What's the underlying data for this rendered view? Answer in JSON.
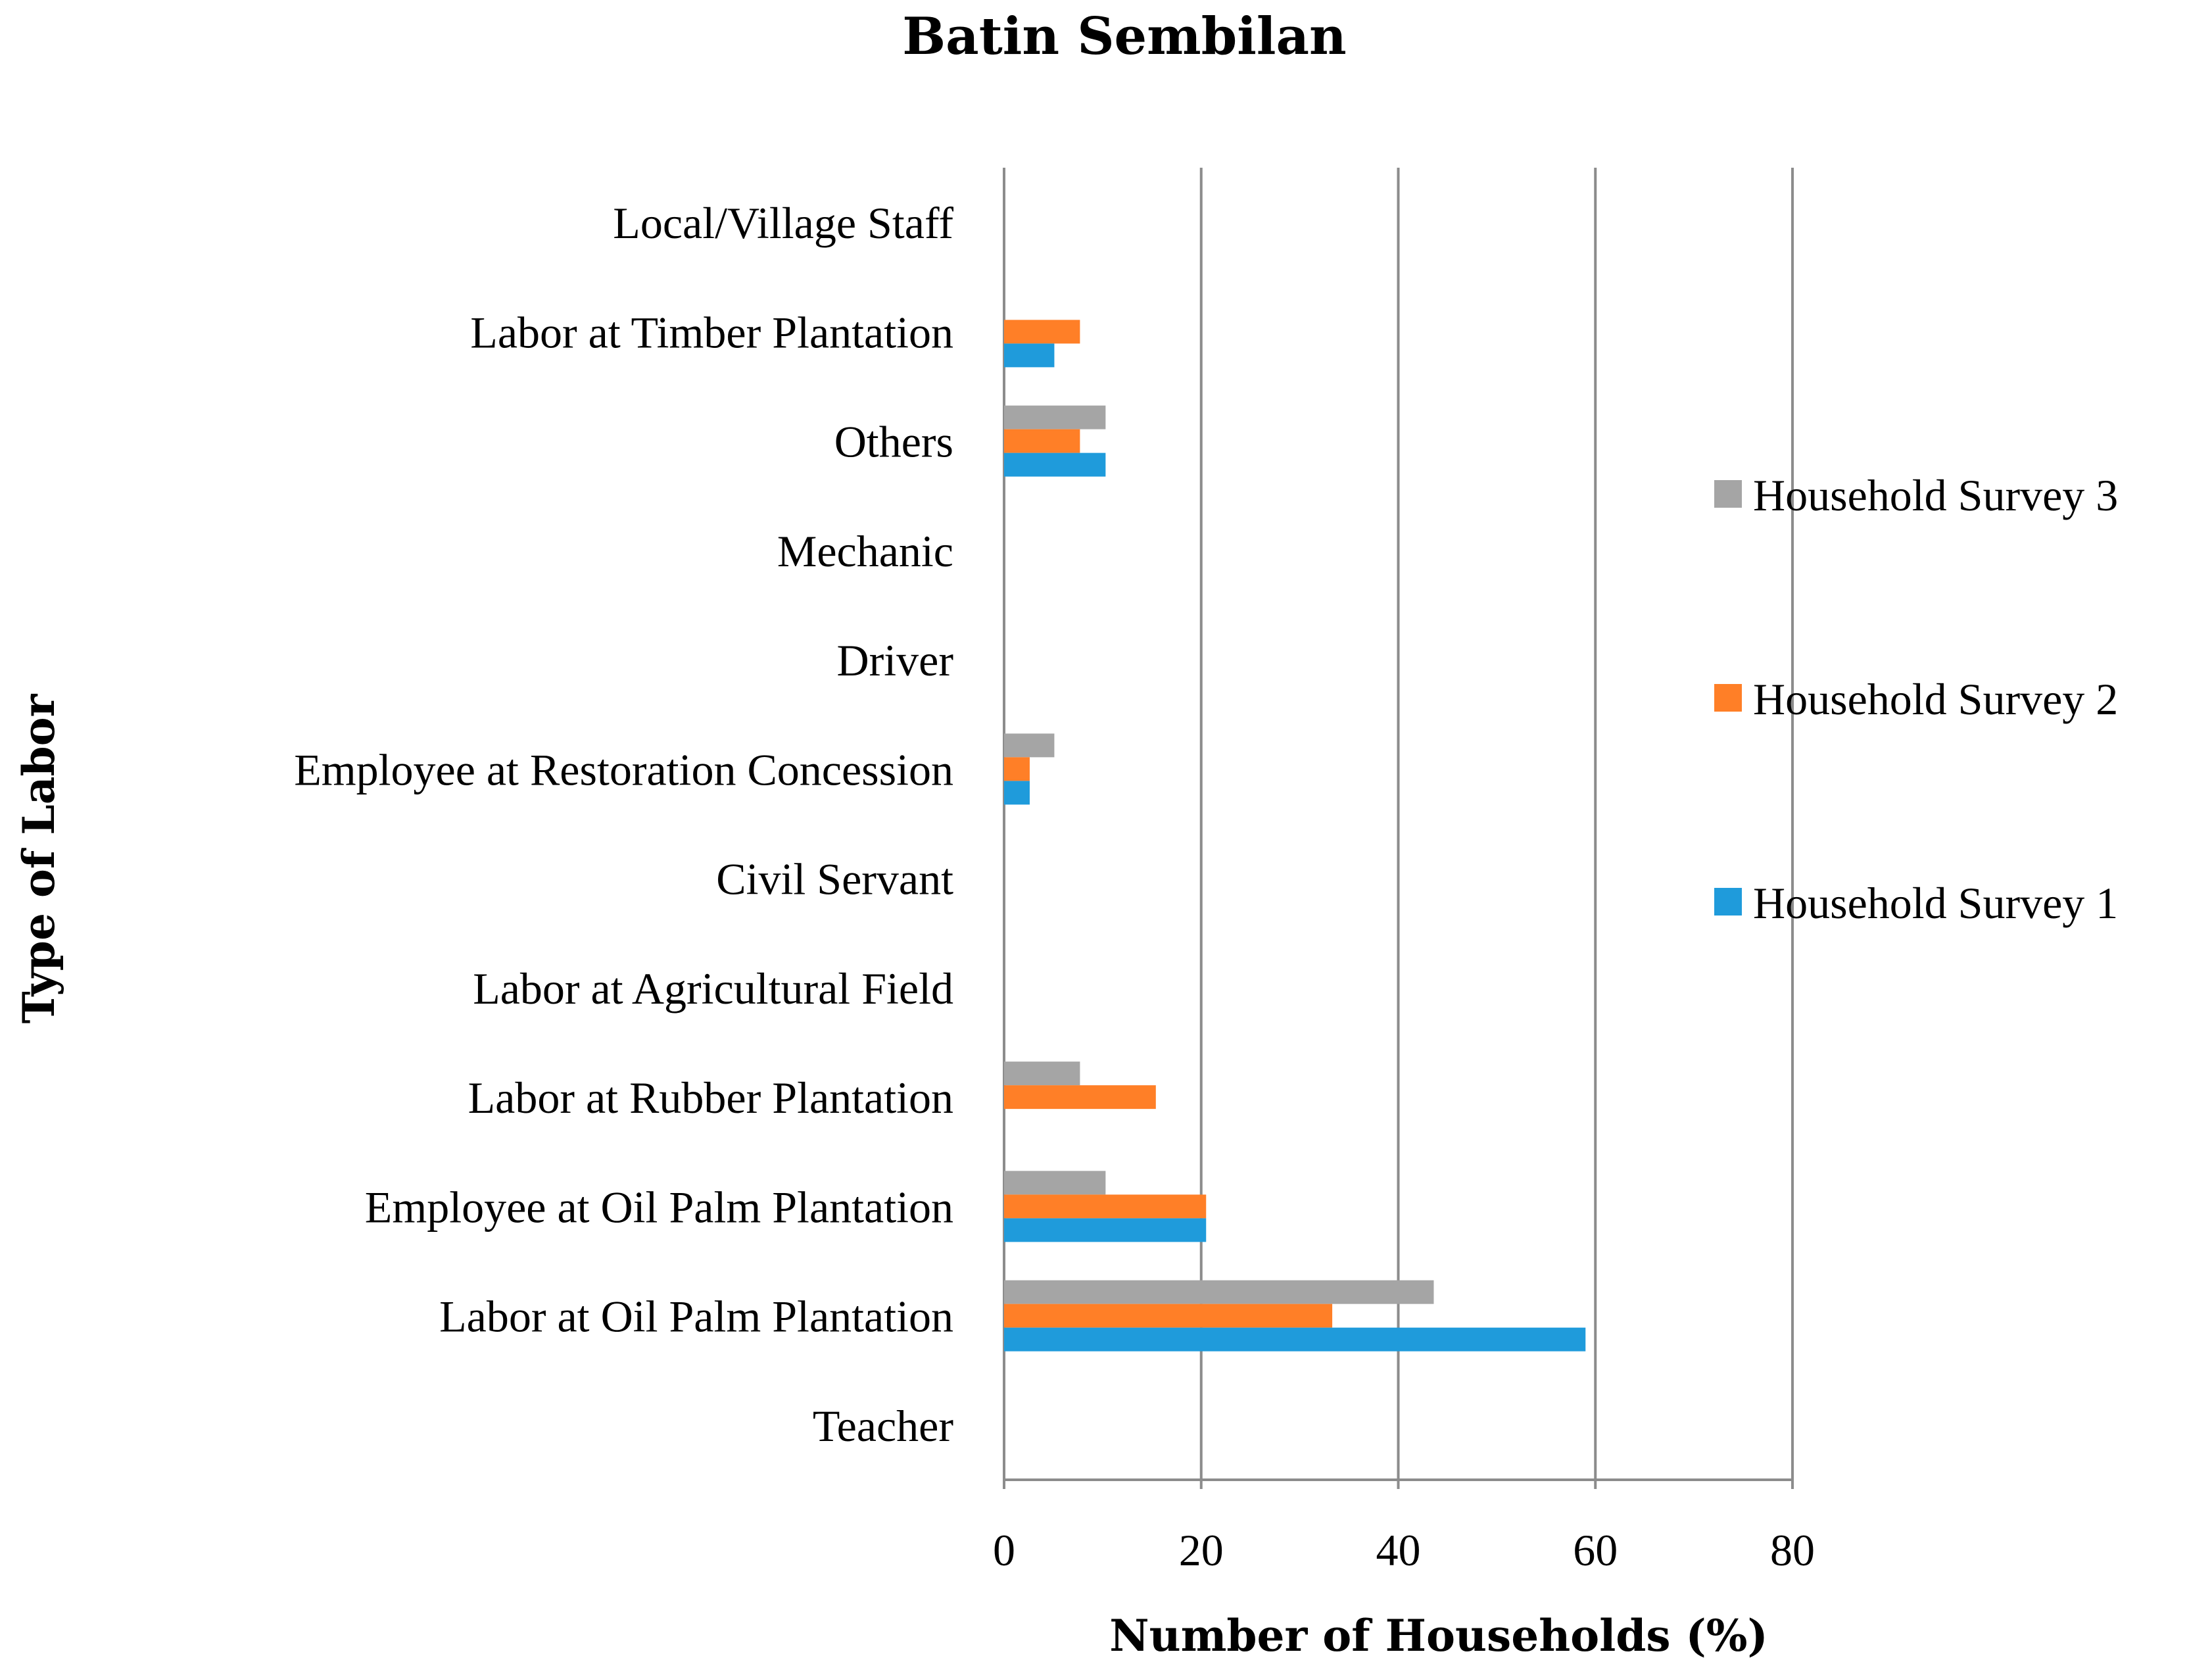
{
  "chart_data": {
    "type": "bar",
    "orientation": "horizontal",
    "title": "Batin Sembilan",
    "xlabel": "Number of Households (%)",
    "ylabel": "Type of Labor",
    "xlim": [
      0,
      80
    ],
    "x_ticks": [
      "0",
      "20",
      "40",
      "60",
      "80"
    ],
    "grid": "vertical",
    "legend_position": "right",
    "categories": [
      "Local/Village Staff",
      "Labor at Timber Plantation",
      "Others",
      "Mechanic",
      "Driver",
      "Employee at Restoration Concession",
      "Civil Servant",
      "Labor at Agricultural Field",
      "Labor at Rubber Plantation",
      "Employee at Oil Palm Plantation",
      "Labor at Oil Palm Plantation",
      "Teacher"
    ],
    "series": [
      {
        "name": "Household Survey 3",
        "color": "#A5A5A5",
        "values": [
          0,
          0,
          10.3,
          0,
          0,
          5.1,
          0,
          0,
          7.7,
          10.3,
          43.6,
          0
        ]
      },
      {
        "name": "Household Survey 2",
        "color": "#FF7F27",
        "values": [
          0,
          7.7,
          7.7,
          0,
          0,
          2.6,
          0,
          0,
          15.4,
          20.5,
          33.3,
          0
        ]
      },
      {
        "name": "Household Survey 1",
        "color": "#1F9BDB",
        "values": [
          0,
          5.1,
          10.3,
          0,
          0,
          2.6,
          0,
          0,
          0,
          20.5,
          59.0,
          0
        ]
      }
    ]
  }
}
